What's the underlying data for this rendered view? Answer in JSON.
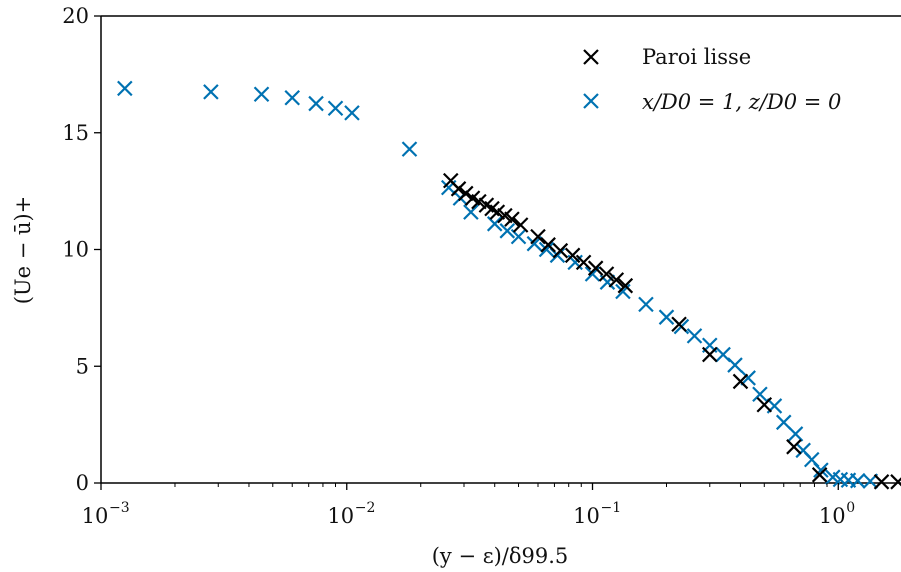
{
  "chart_data": {
    "type": "scatter",
    "xscale": "log",
    "xlim": [
      0.001,
      1.8
    ],
    "ylim": [
      0,
      20
    ],
    "grid": false,
    "legend_position": "top-right",
    "xlabel": "(y − ε)/δ99.5",
    "ylabel": "(Ue − ū)+",
    "x_ticks": [
      {
        "base": "10",
        "exp": "−3",
        "value": 0.001
      },
      {
        "base": "10",
        "exp": "−2",
        "value": 0.01
      },
      {
        "base": "10",
        "exp": "−1",
        "value": 0.1
      },
      {
        "base": "10",
        "exp": "0",
        "value": 1
      }
    ],
    "y_ticks": [
      {
        "label": "0",
        "value": 0
      },
      {
        "label": "5",
        "value": 5
      },
      {
        "label": "10",
        "value": 10
      },
      {
        "label": "15",
        "value": 15
      },
      {
        "label": "20",
        "value": 20
      }
    ],
    "series": [
      {
        "name": "Paroi lisse",
        "color": "#000000",
        "marker": "x",
        "points": [
          [
            0.0265,
            12.95
          ],
          [
            0.0285,
            12.6
          ],
          [
            0.0305,
            12.4
          ],
          [
            0.0325,
            12.2
          ],
          [
            0.0345,
            12.05
          ],
          [
            0.037,
            11.9
          ],
          [
            0.039,
            11.75
          ],
          [
            0.041,
            11.6
          ],
          [
            0.044,
            11.45
          ],
          [
            0.047,
            11.3
          ],
          [
            0.051,
            11.05
          ],
          [
            0.06,
            10.55
          ],
          [
            0.066,
            10.2
          ],
          [
            0.074,
            9.95
          ],
          [
            0.083,
            9.75
          ],
          [
            0.092,
            9.45
          ],
          [
            0.103,
            9.2
          ],
          [
            0.114,
            8.95
          ],
          [
            0.125,
            8.7
          ],
          [
            0.136,
            8.45
          ],
          [
            0.225,
            6.8
          ],
          [
            0.3,
            5.5
          ],
          [
            0.4,
            4.35
          ],
          [
            0.5,
            3.35
          ],
          [
            0.66,
            1.55
          ],
          [
            0.84,
            0.35
          ],
          [
            1.5,
            0.05
          ],
          [
            1.75,
            0.05
          ]
        ]
      },
      {
        "name": "x/D0 = 1, z/D0 = 0",
        "color": "#0072B2",
        "marker": "x",
        "points": [
          [
            0.00125,
            16.9
          ],
          [
            0.0028,
            16.75
          ],
          [
            0.0045,
            16.65
          ],
          [
            0.006,
            16.5
          ],
          [
            0.0075,
            16.25
          ],
          [
            0.009,
            16.05
          ],
          [
            0.0105,
            15.85
          ],
          [
            0.018,
            14.3
          ],
          [
            0.026,
            12.65
          ],
          [
            0.029,
            12.2
          ],
          [
            0.032,
            11.6
          ],
          [
            0.04,
            11.1
          ],
          [
            0.045,
            10.8
          ],
          [
            0.05,
            10.55
          ],
          [
            0.058,
            10.25
          ],
          [
            0.065,
            10.0
          ],
          [
            0.072,
            9.75
          ],
          [
            0.085,
            9.45
          ],
          [
            0.1,
            8.95
          ],
          [
            0.115,
            8.6
          ],
          [
            0.133,
            8.2
          ],
          [
            0.165,
            7.65
          ],
          [
            0.2,
            7.1
          ],
          [
            0.23,
            6.7
          ],
          [
            0.26,
            6.3
          ],
          [
            0.3,
            5.9
          ],
          [
            0.34,
            5.5
          ],
          [
            0.38,
            5.05
          ],
          [
            0.43,
            4.5
          ],
          [
            0.48,
            3.8
          ],
          [
            0.55,
            3.3
          ],
          [
            0.6,
            2.6
          ],
          [
            0.67,
            2.1
          ],
          [
            0.72,
            1.4
          ],
          [
            0.78,
            1.0
          ],
          [
            0.85,
            0.55
          ],
          [
            0.95,
            0.25
          ],
          [
            1.02,
            0.15
          ],
          [
            1.1,
            0.12
          ],
          [
            1.2,
            0.1
          ],
          [
            1.35,
            0.08
          ]
        ]
      }
    ]
  }
}
